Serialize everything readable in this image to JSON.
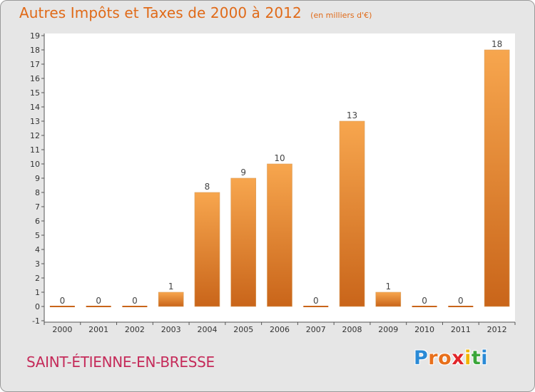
{
  "header": {
    "title": "Autres Impôts et Taxes de 2000 à 2012",
    "unit": "(en milliers d'€)"
  },
  "commune": "SAINT-ÉTIENNE-EN-BRESSE",
  "logo": {
    "letters": [
      "P",
      "r",
      "o",
      "x",
      "i",
      "t",
      "i"
    ],
    "colors": [
      "#2a8ad6",
      "#e8701c",
      "#e8701c",
      "#e1262a",
      "#f0b400",
      "#3aa63a",
      "#2a8ad6"
    ]
  },
  "colors": {
    "accent": "#e06a18",
    "bar_top": "#f7a64e",
    "bar_bottom": "#c9651a",
    "background": "#e6e6e6",
    "plot_background": "#ffffff",
    "commune": "#c52b5a"
  },
  "chart_data": {
    "type": "bar",
    "categories": [
      "2000",
      "2001",
      "2002",
      "2003",
      "2004",
      "2005",
      "2006",
      "2007",
      "2008",
      "2009",
      "2010",
      "2011",
      "2012"
    ],
    "values": [
      0,
      0,
      0,
      1,
      8,
      9,
      10,
      0,
      13,
      1,
      0,
      0,
      18
    ],
    "data_labels": [
      "0",
      "0",
      "0",
      "1",
      "8",
      "9",
      "10",
      "0",
      "13",
      "1",
      "0",
      "0",
      "18"
    ],
    "yticks": [
      "19",
      "18",
      "17",
      "16",
      "15",
      "14",
      "13",
      "12",
      "11",
      "10",
      "9",
      "8",
      "7",
      "6",
      "5",
      "4",
      "3",
      "2",
      "1",
      "0",
      "-1"
    ],
    "ylim": [
      -1,
      19
    ],
    "grid": false,
    "xlabel": "",
    "ylabel": ""
  }
}
